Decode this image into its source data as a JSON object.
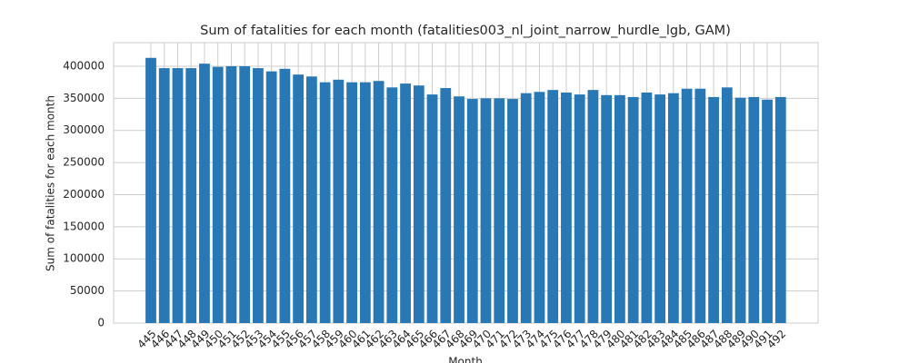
{
  "chart_data": {
    "type": "bar",
    "title": "Sum of fatalities for each month (fatalities003_nl_joint_narrow_hurdle_lgb, GAM)",
    "x_label": "Month",
    "y_label": "Sum of fatalities for each month",
    "categories": [
      "445",
      "446",
      "447",
      "448",
      "449",
      "450",
      "451",
      "452",
      "453",
      "454",
      "455",
      "456",
      "457",
      "458",
      "459",
      "460",
      "461",
      "462",
      "463",
      "464",
      "465",
      "466",
      "467",
      "468",
      "469",
      "470",
      "471",
      "472",
      "473",
      "474",
      "475",
      "476",
      "477",
      "478",
      "479",
      "480",
      "481",
      "482",
      "483",
      "484",
      "485",
      "486",
      "487",
      "488",
      "489",
      "490",
      "491",
      "492"
    ],
    "values": [
      413000,
      397000,
      397000,
      397000,
      404000,
      399000,
      400000,
      400000,
      397000,
      392000,
      396000,
      387000,
      384000,
      375000,
      379000,
      375000,
      375000,
      377000,
      367000,
      373000,
      370000,
      356000,
      366000,
      353000,
      349000,
      350000,
      350000,
      349000,
      358000,
      360000,
      363000,
      359000,
      356000,
      363000,
      355000,
      355000,
      352000,
      359000,
      356000,
      358000,
      365000,
      365000,
      352000,
      367000,
      351000,
      352000,
      348000,
      352000
    ],
    "color": "#2878b5",
    "ylim": [
      0,
      436700
    ],
    "yticks": [
      0,
      50000,
      100000,
      150000,
      200000,
      250000,
      300000,
      350000,
      400000
    ],
    "grid": true
  }
}
